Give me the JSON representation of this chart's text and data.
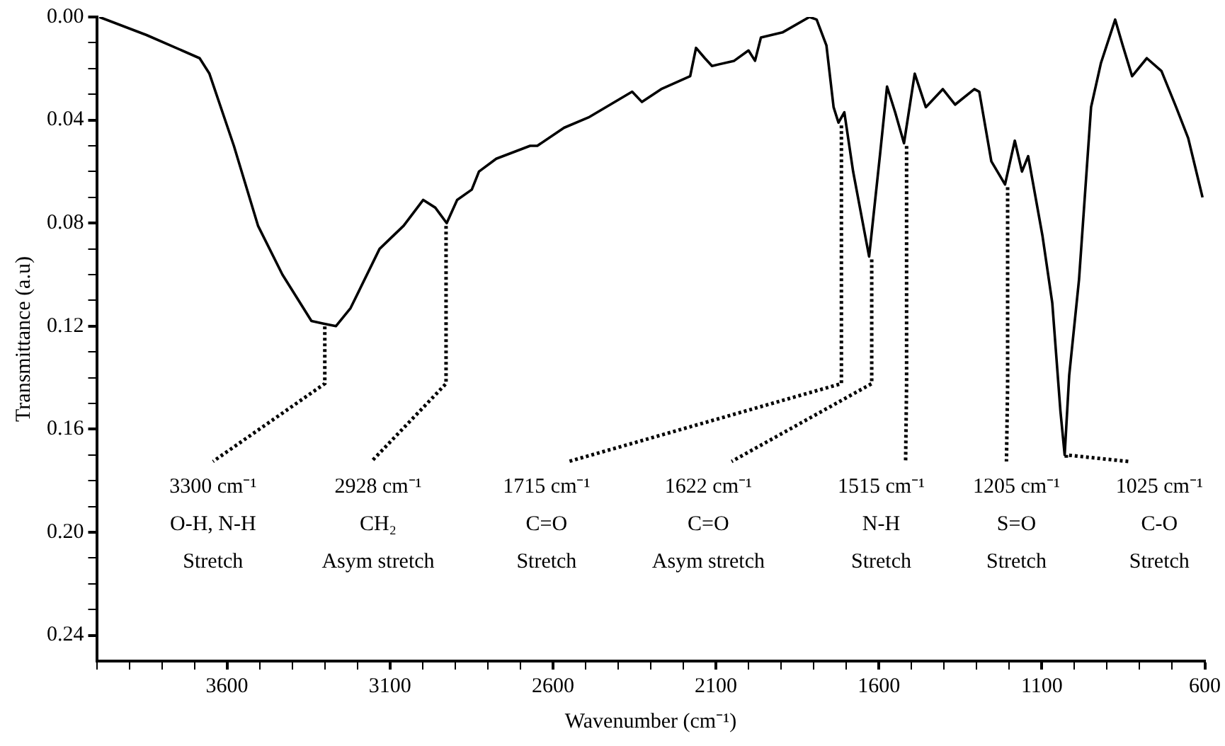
{
  "chart_data": {
    "type": "line",
    "xlabel": "Wavenumber (cm⁻¹)",
    "ylabel": "Transmittance (a.u)",
    "x": [
      3992,
      3847,
      3684,
      3654,
      3579,
      3505,
      3430,
      3341,
      3304,
      3266,
      3221,
      3132,
      3058,
      2998,
      2961,
      2926,
      2894,
      2849,
      2827,
      2774,
      2670,
      2648,
      2566,
      2491,
      2357,
      2327,
      2268,
      2179,
      2161,
      2134,
      2112,
      2044,
      2000,
      1980,
      1962,
      1896,
      1813,
      1791,
      1761,
      1739,
      1724,
      1706,
      1679,
      1630,
      1597,
      1575,
      1550,
      1523,
      1490,
      1456,
      1404,
      1366,
      1307,
      1292,
      1255,
      1213,
      1183,
      1161,
      1142,
      1098,
      1068,
      1043,
      1030,
      1016,
      986,
      949,
      919,
      875,
      852,
      823,
      778,
      733,
      688,
      651,
      607
    ],
    "series": [
      {
        "color": "#000000",
        "values": [
          0.0,
          0.007,
          0.016,
          0.022,
          0.05,
          0.081,
          0.1,
          0.118,
          0.119,
          0.12,
          0.113,
          0.09,
          0.081,
          0.071,
          0.074,
          0.08,
          0.071,
          0.067,
          0.06,
          0.055,
          0.05,
          0.05,
          0.043,
          0.039,
          0.029,
          0.033,
          0.028,
          0.023,
          0.012,
          0.016,
          0.019,
          0.017,
          0.013,
          0.017,
          0.008,
          0.006,
          0.0,
          0.001,
          0.011,
          0.035,
          0.041,
          0.037,
          0.06,
          0.093,
          0.054,
          0.027,
          0.037,
          0.049,
          0.022,
          0.035,
          0.028,
          0.034,
          0.028,
          0.029,
          0.056,
          0.065,
          0.048,
          0.06,
          0.054,
          0.085,
          0.111,
          0.153,
          0.17,
          0.139,
          0.102,
          0.035,
          0.018,
          0.001,
          0.011,
          0.023,
          0.016,
          0.021,
          0.035,
          0.047,
          0.07
        ]
      }
    ],
    "xlim": [
      4000,
      600
    ],
    "xticks": [
      {
        "value": 4000,
        "label": null
      },
      {
        "value": 3900,
        "label": null
      },
      {
        "value": 3800,
        "label": null
      },
      {
        "value": 3700,
        "label": null
      },
      3600,
      {
        "value": 3500,
        "label": null
      },
      {
        "value": 3400,
        "label": null
      },
      {
        "value": 3300,
        "label": null
      },
      {
        "value": 3200,
        "label": null
      },
      3100,
      {
        "value": 3000,
        "label": null
      },
      {
        "value": 2900,
        "label": null
      },
      {
        "value": 2800,
        "label": null
      },
      {
        "value": 2700,
        "label": null
      },
      2600,
      {
        "value": 2500,
        "label": null
      },
      {
        "value": 2400,
        "label": null
      },
      {
        "value": 2300,
        "label": null
      },
      {
        "value": 2200,
        "label": null
      },
      2100,
      {
        "value": 2000,
        "label": null
      },
      {
        "value": 1900,
        "label": null
      },
      {
        "value": 1800,
        "label": null
      },
      {
        "value": 1700,
        "label": null
      },
      1600,
      {
        "value": 1500,
        "label": null
      },
      {
        "value": 1400,
        "label": null
      },
      {
        "value": 1300,
        "label": null
      },
      {
        "value": 1200,
        "label": null
      },
      1100,
      {
        "value": 1000,
        "label": null
      },
      {
        "value": 900,
        "label": null
      },
      {
        "value": 800,
        "label": null
      },
      {
        "value": 700,
        "label": null
      },
      600
    ],
    "ylim": [
      0.25,
      0
    ],
    "yticks": [
      {
        "value": 0,
        "label": "0.00"
      },
      {
        "value": 0.01,
        "label": null
      },
      {
        "value": 0.02,
        "label": null
      },
      {
        "value": 0.03,
        "label": null
      },
      {
        "value": 0.04,
        "label": "0.04"
      },
      {
        "value": 0.05,
        "label": null
      },
      {
        "value": 0.06,
        "label": null
      },
      {
        "value": 0.07,
        "label": null
      },
      {
        "value": 0.08,
        "label": "0.08"
      },
      {
        "value": 0.09,
        "label": null
      },
      {
        "value": 0.1,
        "label": null
      },
      {
        "value": 0.11,
        "label": null
      },
      {
        "value": 0.12,
        "label": "0.12"
      },
      {
        "value": 0.13,
        "label": null
      },
      {
        "value": 0.14,
        "label": null
      },
      {
        "value": 0.15,
        "label": null
      },
      {
        "value": 0.16,
        "label": "0.16"
      },
      {
        "value": 0.17,
        "label": null
      },
      {
        "value": 0.18,
        "label": null
      },
      {
        "value": 0.19,
        "label": null
      },
      {
        "value": 0.2,
        "label": "0.20"
      },
      {
        "value": 0.21,
        "label": null
      },
      {
        "value": 0.22,
        "label": null
      },
      {
        "value": 0.23,
        "label": null
      },
      {
        "value": 0.24,
        "label": "0.24"
      }
    ],
    "grid": false,
    "legend": false,
    "marker": "none",
    "line_style": "solid",
    "annotations": [
      {
        "text": "3300 cm⁻¹\nO-H, N-H\nStretch",
        "x": 3300,
        "y": 0.119
      },
      {
        "text": "2928 cm⁻¹\nCH₂\nAsym stretch",
        "x": 2928,
        "y": 0.08
      },
      {
        "text": "1715 cm⁻¹\nC=O\nStretch",
        "x": 1715,
        "y": 0.041
      },
      {
        "text": "1622 cm⁻¹\nC=O\nAsym stretch",
        "x": 1622,
        "y": 0.093
      },
      {
        "text": "1515 cm⁻¹\nN-H\nStretch",
        "x": 1515,
        "y": 0.049
      },
      {
        "text": "1205 cm⁻¹\nS=O\nStretch",
        "x": 1205,
        "y": 0.065
      },
      {
        "text": "1025 cm⁻¹\nC-O\nStretch",
        "x": 1025,
        "y": 0.17
      }
    ]
  }
}
